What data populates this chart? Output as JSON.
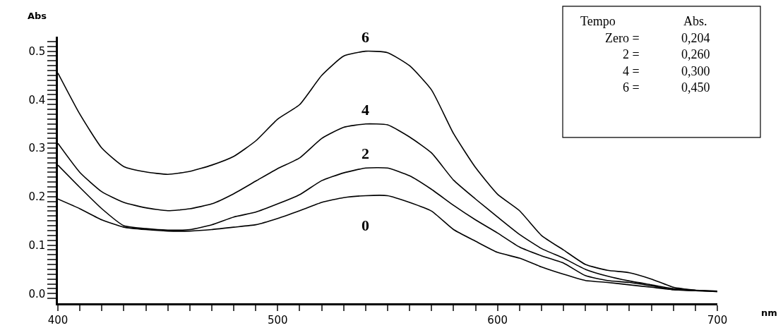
{
  "chart_data": {
    "type": "line",
    "xlabel": "nm",
    "ylabel": "Abs",
    "xlim": [
      400,
      700
    ],
    "xticks": [
      400,
      {
        "value": 410,
        "label": null
      },
      {
        "value": 420,
        "label": null
      },
      {
        "value": 430,
        "label": null
      },
      {
        "value": 440,
        "label": null
      },
      {
        "value": 450,
        "label": null
      },
      {
        "value": 460,
        "label": null
      },
      {
        "value": 470,
        "label": null
      },
      {
        "value": 480,
        "label": null
      },
      {
        "value": 490,
        "label": null
      },
      500,
      {
        "value": 510,
        "label": null
      },
      {
        "value": 520,
        "label": null
      },
      {
        "value": 530,
        "label": null
      },
      {
        "value": 540,
        "label": null
      },
      {
        "value": 550,
        "label": null
      },
      {
        "value": 560,
        "label": null
      },
      {
        "value": 570,
        "label": null
      },
      {
        "value": 580,
        "label": null
      },
      {
        "value": 590,
        "label": null
      },
      600,
      {
        "value": 610,
        "label": null
      },
      {
        "value": 620,
        "label": null
      },
      {
        "value": 630,
        "label": null
      },
      {
        "value": 640,
        "label": null
      },
      {
        "value": 650,
        "label": null
      },
      {
        "value": 660,
        "label": null
      },
      {
        "value": 670,
        "label": null
      },
      {
        "value": 680,
        "label": null
      },
      {
        "value": 690,
        "label": null
      },
      700
    ],
    "ylim": [
      -0.02,
      0.53
    ],
    "yticks": [
      {
        "value": -0.01,
        "label": null
      },
      {
        "value": 0,
        "label": "0.0"
      },
      {
        "value": 0.01,
        "label": null
      },
      {
        "value": 0.02,
        "label": null
      },
      {
        "value": 0.03,
        "label": null
      },
      {
        "value": 0.04,
        "label": null
      },
      {
        "value": 0.05,
        "label": null
      },
      {
        "value": 0.06,
        "label": null
      },
      {
        "value": 0.07,
        "label": null
      },
      {
        "value": 0.08,
        "label": null
      },
      {
        "value": 0.09,
        "label": null
      },
      {
        "value": 0.1,
        "label": "0.1"
      },
      {
        "value": 0.11,
        "label": null
      },
      {
        "value": 0.12,
        "label": null
      },
      {
        "value": 0.13,
        "label": null
      },
      {
        "value": 0.14,
        "label": null
      },
      {
        "value": 0.15,
        "label": null
      },
      {
        "value": 0.16,
        "label": null
      },
      {
        "value": 0.17,
        "label": null
      },
      {
        "value": 0.18,
        "label": null
      },
      {
        "value": 0.19,
        "label": null
      },
      {
        "value": 0.2,
        "label": "0.2"
      },
      {
        "value": 0.21,
        "label": null
      },
      {
        "value": 0.22,
        "label": null
      },
      {
        "value": 0.23,
        "label": null
      },
      {
        "value": 0.24,
        "label": null
      },
      {
        "value": 0.25,
        "label": null
      },
      {
        "value": 0.26,
        "label": null
      },
      {
        "value": 0.27,
        "label": null
      },
      {
        "value": 0.28,
        "label": null
      },
      {
        "value": 0.29,
        "label": null
      },
      {
        "value": 0.3,
        "label": "0.3"
      },
      {
        "value": 0.31,
        "label": null
      },
      {
        "value": 0.32,
        "label": null
      },
      {
        "value": 0.33,
        "label": null
      },
      {
        "value": 0.34,
        "label": null
      },
      {
        "value": 0.35,
        "label": null
      },
      {
        "value": 0.36,
        "label": null
      },
      {
        "value": 0.37,
        "label": null
      },
      {
        "value": 0.38,
        "label": null
      },
      {
        "value": 0.39,
        "label": null
      },
      {
        "value": 0.4,
        "label": "0.4"
      },
      {
        "value": 0.41,
        "label": null
      },
      {
        "value": 0.42,
        "label": null
      },
      {
        "value": 0.43,
        "label": null
      },
      {
        "value": 0.44,
        "label": null
      },
      {
        "value": 0.45,
        "label": null
      },
      {
        "value": 0.46,
        "label": null
      },
      {
        "value": 0.47,
        "label": null
      },
      {
        "value": 0.48,
        "label": null
      },
      {
        "value": 0.49,
        "label": null
      },
      {
        "value": 0.5,
        "label": "0.5"
      },
      {
        "value": 0.51,
        "label": null
      },
      {
        "value": 0.52,
        "label": null
      }
    ],
    "x": [
      400,
      410,
      420,
      430,
      440,
      450,
      460,
      470,
      480,
      490,
      500,
      510,
      520,
      530,
      540,
      550,
      560,
      570,
      580,
      590,
      600,
      610,
      620,
      630,
      640,
      650,
      660,
      670,
      680,
      690,
      700
    ],
    "series": [
      {
        "name": "6",
        "color": "#000000",
        "values": [
          0.455,
          0.37,
          0.3,
          0.262,
          0.251,
          0.246,
          0.252,
          0.265,
          0.283,
          0.315,
          0.36,
          0.39,
          0.45,
          0.49,
          0.5,
          0.497,
          0.47,
          0.42,
          0.33,
          0.26,
          0.205,
          0.171,
          0.12,
          0.09,
          0.06,
          0.048,
          0.043,
          0.03,
          0.013,
          0.007,
          0.004
        ]
      },
      {
        "name": "4",
        "color": "#000000",
        "values": [
          0.31,
          0.25,
          0.21,
          0.188,
          0.177,
          0.171,
          0.175,
          0.185,
          0.206,
          0.232,
          0.258,
          0.28,
          0.32,
          0.343,
          0.35,
          0.348,
          0.323,
          0.29,
          0.234,
          0.195,
          0.158,
          0.122,
          0.093,
          0.073,
          0.05,
          0.036,
          0.026,
          0.018,
          0.01,
          0.007,
          0.005
        ]
      },
      {
        "name": "2",
        "color": "#000000",
        "values": [
          0.265,
          0.219,
          0.175,
          0.14,
          0.134,
          0.131,
          0.132,
          0.142,
          0.158,
          0.168,
          0.185,
          0.204,
          0.233,
          0.249,
          0.259,
          0.259,
          0.243,
          0.215,
          0.182,
          0.152,
          0.125,
          0.096,
          0.078,
          0.063,
          0.037,
          0.027,
          0.023,
          0.016,
          0.008,
          0.006,
          0.005
        ]
      },
      {
        "name": "0",
        "color": "#000000",
        "values": [
          0.195,
          0.175,
          0.152,
          0.137,
          0.132,
          0.129,
          0.129,
          0.132,
          0.137,
          0.142,
          0.155,
          0.171,
          0.188,
          0.198,
          0.202,
          0.202,
          0.188,
          0.17,
          0.132,
          0.108,
          0.085,
          0.073,
          0.055,
          0.04,
          0.027,
          0.023,
          0.018,
          0.013,
          0.008,
          0.006,
          0.004
        ]
      }
    ],
    "annotations": [
      "Tempo\tAbs.\nZero =\t0,204\n2 =\t0,260\n4 =\t0,300\n6 =\t0,450"
    ],
    "legend": false,
    "marker": "none",
    "line_style": "solid"
  }
}
